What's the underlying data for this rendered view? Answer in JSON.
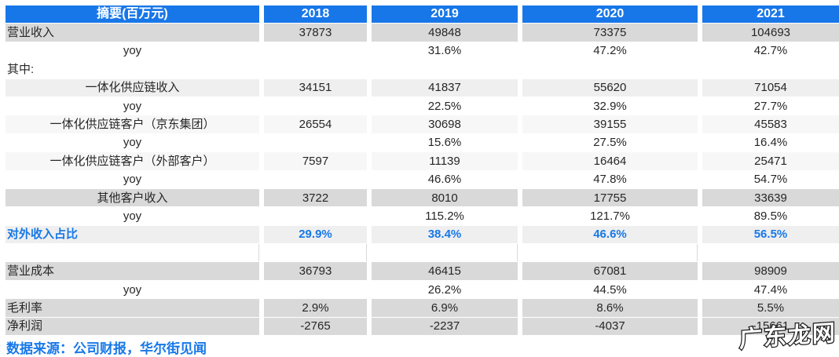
{
  "chart_data": {
    "type": "table",
    "title": "摘要(百万元)",
    "unit": "百万元",
    "columns": [
      "摘要(百万元)",
      "2018",
      "2019",
      "2020",
      "2021"
    ],
    "rows": [
      {
        "label": "营业收入",
        "values": [
          "37873",
          "49848",
          "73375",
          "104693"
        ],
        "style": "dark",
        "align": "left"
      },
      {
        "label": "yoy",
        "values": [
          "",
          "31.6%",
          "47.2%",
          "42.7%"
        ],
        "style": "white",
        "align": "center"
      },
      {
        "label": "其中:",
        "values": [
          "",
          "",
          "",
          ""
        ],
        "style": "white",
        "align": "left"
      },
      {
        "label": "一体化供应链收入",
        "values": [
          "34151",
          "41837",
          "55620",
          "71054"
        ],
        "style": "medium",
        "align": "center"
      },
      {
        "label": "yoy",
        "values": [
          "",
          "22.5%",
          "32.9%",
          "27.7%"
        ],
        "style": "white",
        "align": "center"
      },
      {
        "label": "一体化供应链客户（京东集团）",
        "values": [
          "26554",
          "30698",
          "39155",
          "45583"
        ],
        "style": "light",
        "align": "center"
      },
      {
        "label": "yoy",
        "values": [
          "",
          "15.6%",
          "27.5%",
          "16.4%"
        ],
        "style": "white",
        "align": "center"
      },
      {
        "label": "一体化供应链客户（外部客户）",
        "values": [
          "7597",
          "11139",
          "16464",
          "25471"
        ],
        "style": "light",
        "align": "center"
      },
      {
        "label": "yoy",
        "values": [
          "",
          "46.6%",
          "47.8%",
          "54.7%"
        ],
        "style": "white",
        "align": "center"
      },
      {
        "label": "其他客户收入",
        "values": [
          "3722",
          "8010",
          "17755",
          "33639"
        ],
        "style": "dark",
        "align": "center"
      },
      {
        "label": "yoy",
        "values": [
          "",
          "115.2%",
          "121.7%",
          "89.5%"
        ],
        "style": "white",
        "align": "center"
      },
      {
        "label": "对外收入占比",
        "values": [
          "29.9%",
          "38.4%",
          "46.6%",
          "56.5%"
        ],
        "style": "highlight",
        "align": "left"
      },
      {
        "label": "",
        "values": [
          "",
          "",
          "",
          ""
        ],
        "style": "empty",
        "align": "left"
      },
      {
        "label": "营业成本",
        "values": [
          "36793",
          "46415",
          "67081",
          "98909"
        ],
        "style": "dark",
        "align": "left"
      },
      {
        "label": "yoy",
        "values": [
          "",
          "26.2%",
          "44.5%",
          "47.4%"
        ],
        "style": "white",
        "align": "center"
      },
      {
        "label": "毛利率",
        "values": [
          "2.9%",
          "6.9%",
          "8.6%",
          "5.5%"
        ],
        "style": "dark",
        "align": "left"
      },
      {
        "label": "净利润",
        "values": [
          "-2765",
          "-2237",
          "-4037",
          "-15661"
        ],
        "style": "dark",
        "align": "left"
      }
    ],
    "source": "数据来源：公司财报，华尔街见闻",
    "layout_hints": {
      "legend": "none",
      "grid": "off",
      "header_position": "top"
    }
  },
  "watermark": {
    "text": "广东龙网"
  },
  "colors": {
    "header_bg": "#1877e8",
    "header_text": "#ffffff",
    "accent_text": "#1778e8",
    "row_dark": "#d9d9d9",
    "row_medium": "#efefef",
    "row_light": "#f7f7f7",
    "body_text": "#262626",
    "watermark_fill": "#ffffff",
    "watermark_outline": "#1d1d1d"
  }
}
